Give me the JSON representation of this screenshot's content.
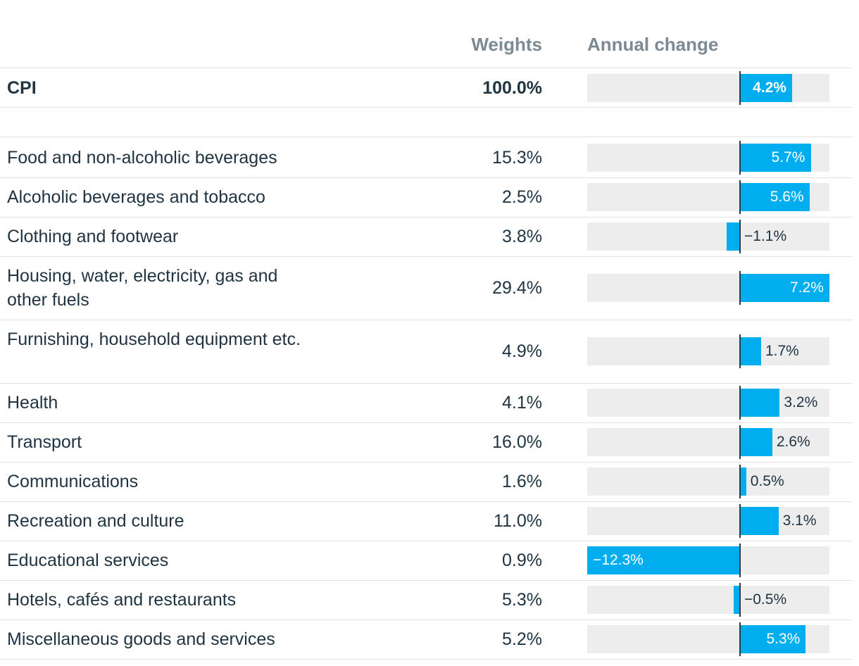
{
  "header": {
    "weights": "Weights",
    "annual_change": "Annual change"
  },
  "colors": {
    "bar": "#00aeef",
    "track": "#ededed",
    "text": "#1f3340",
    "header_text": "#7b8a93"
  },
  "total": {
    "label": "CPI",
    "weight": "100.0%",
    "change": 4.2,
    "change_label": "4.2%"
  },
  "chart_data": {
    "type": "bar",
    "title": "",
    "xlabel": "Annual change",
    "ylabel": "",
    "xlim": [
      -12.3,
      7.2
    ],
    "categories": [
      "Food and non-alcoholic beverages",
      "Alcoholic beverages and tobacco",
      "Clothing and footwear",
      "Housing, water, electricity, gas and other fuels",
      "Furnishing, household equipment etc.",
      "Health",
      "Transport",
      "Communications",
      "Recreation and culture",
      "Educational services",
      "Hotels, cafés and restaurants",
      "Miscellaneous goods and services"
    ],
    "weights": [
      "15.3%",
      "2.5%",
      "3.8%",
      "29.4%",
      "4.9%",
      "4.1%",
      "16.0%",
      "1.6%",
      "11.0%",
      "0.9%",
      "5.3%",
      "5.2%"
    ],
    "values": [
      5.7,
      5.6,
      -1.1,
      7.2,
      1.7,
      3.2,
      2.6,
      0.5,
      3.1,
      -12.3,
      -0.5,
      5.3
    ],
    "value_labels": [
      "5.7%",
      "5.6%",
      "−1.1%",
      "7.2%",
      "1.7%",
      "3.2%",
      "2.6%",
      "0.5%",
      "3.1%",
      "−12.3%",
      "−0.5%",
      "5.3%"
    ]
  }
}
